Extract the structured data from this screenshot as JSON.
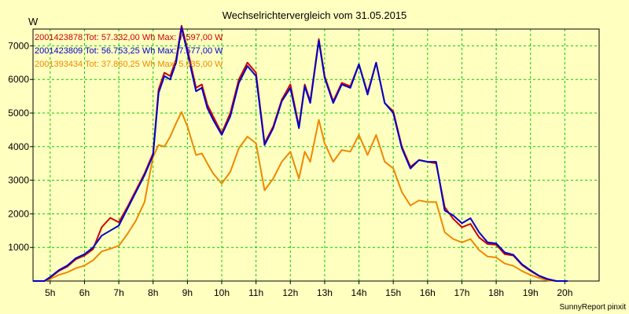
{
  "chart_data": {
    "type": "line",
    "title": "Wechselrichtervergleich vom 31.05.2015",
    "ylabel": "W",
    "xlabel": "",
    "xlim": [
      4.5,
      21.0
    ],
    "ylim": [
      0,
      7500
    ],
    "grid": true,
    "x_ticks": [
      5,
      6,
      7,
      8,
      9,
      10,
      11,
      12,
      13,
      14,
      15,
      16,
      17,
      18,
      19,
      20
    ],
    "x_tick_labels": [
      "5h",
      "6h",
      "7h",
      "8h",
      "9h",
      "10h",
      "11h",
      "12h",
      "13h",
      "14h",
      "15h",
      "16h",
      "17h",
      "18h",
      "19h",
      "20h"
    ],
    "y_ticks": [
      1000,
      2000,
      3000,
      4000,
      5000,
      6000,
      7000
    ],
    "y_tick_labels": [
      "1000",
      "2000",
      "3000",
      "4000",
      "5000",
      "6000",
      "7000"
    ],
    "legend_position": "top-left",
    "credit": "SunnyReport pinxit",
    "series": [
      {
        "name": "2001423878",
        "legend": "2001423878 Tot: 57.332,00 Wh Max: 7.597,00 W",
        "color": "#d00000",
        "points": [
          [
            4.5,
            0
          ],
          [
            4.83,
            0
          ],
          [
            5.0,
            100
          ],
          [
            5.25,
            300
          ],
          [
            5.5,
            430
          ],
          [
            5.75,
            650
          ],
          [
            6.0,
            760
          ],
          [
            6.25,
            950
          ],
          [
            6.5,
            1600
          ],
          [
            6.75,
            1880
          ],
          [
            7.0,
            1750
          ],
          [
            7.25,
            2200
          ],
          [
            7.5,
            2700
          ],
          [
            7.75,
            3200
          ],
          [
            8.0,
            3800
          ],
          [
            8.16,
            5700
          ],
          [
            8.33,
            6200
          ],
          [
            8.5,
            6100
          ],
          [
            8.67,
            6600
          ],
          [
            8.83,
            7600
          ],
          [
            9.0,
            6900
          ],
          [
            9.25,
            5750
          ],
          [
            9.42,
            5850
          ],
          [
            9.58,
            5250
          ],
          [
            9.75,
            4900
          ],
          [
            10.0,
            4400
          ],
          [
            10.25,
            5000
          ],
          [
            10.5,
            6000
          ],
          [
            10.75,
            6500
          ],
          [
            11.0,
            6200
          ],
          [
            11.25,
            4100
          ],
          [
            11.5,
            4600
          ],
          [
            11.75,
            5400
          ],
          [
            12.0,
            5850
          ],
          [
            12.25,
            4600
          ],
          [
            12.42,
            5850
          ],
          [
            12.58,
            5350
          ],
          [
            12.83,
            7200
          ],
          [
            13.0,
            6100
          ],
          [
            13.25,
            5350
          ],
          [
            13.5,
            5900
          ],
          [
            13.75,
            5800
          ],
          [
            14.0,
            6450
          ],
          [
            14.25,
            5600
          ],
          [
            14.5,
            6500
          ],
          [
            14.75,
            5300
          ],
          [
            15.0,
            5050
          ],
          [
            15.25,
            4000
          ],
          [
            15.5,
            3400
          ],
          [
            15.75,
            3600
          ],
          [
            16.0,
            3550
          ],
          [
            16.25,
            3500
          ],
          [
            16.5,
            2200
          ],
          [
            16.75,
            1850
          ],
          [
            17.0,
            1600
          ],
          [
            17.25,
            1700
          ],
          [
            17.5,
            1300
          ],
          [
            17.75,
            1100
          ],
          [
            18.0,
            1080
          ],
          [
            18.25,
            800
          ],
          [
            18.5,
            760
          ],
          [
            18.75,
            480
          ],
          [
            19.0,
            300
          ],
          [
            19.25,
            150
          ],
          [
            19.5,
            50
          ],
          [
            19.75,
            0
          ],
          [
            20.08,
            0
          ]
        ]
      },
      {
        "name": "2001423809",
        "legend": "2001423809 Tot: 56.753,25 Wh Max: 7.577,00 W",
        "color": "#0000cc",
        "points": [
          [
            4.5,
            0
          ],
          [
            4.83,
            0
          ],
          [
            5.0,
            120
          ],
          [
            5.25,
            320
          ],
          [
            5.5,
            460
          ],
          [
            5.75,
            680
          ],
          [
            6.0,
            800
          ],
          [
            6.25,
            1000
          ],
          [
            6.5,
            1350
          ],
          [
            6.75,
            1500
          ],
          [
            7.0,
            1650
          ],
          [
            7.25,
            2150
          ],
          [
            7.5,
            2650
          ],
          [
            7.75,
            3150
          ],
          [
            8.0,
            3750
          ],
          [
            8.16,
            5600
          ],
          [
            8.33,
            6100
          ],
          [
            8.5,
            6000
          ],
          [
            8.67,
            6500
          ],
          [
            8.83,
            7550
          ],
          [
            9.0,
            6800
          ],
          [
            9.25,
            5650
          ],
          [
            9.42,
            5750
          ],
          [
            9.58,
            5150
          ],
          [
            9.75,
            4800
          ],
          [
            10.0,
            4350
          ],
          [
            10.25,
            4900
          ],
          [
            10.5,
            5900
          ],
          [
            10.75,
            6400
          ],
          [
            11.0,
            6100
          ],
          [
            11.25,
            4050
          ],
          [
            11.5,
            4550
          ],
          [
            11.75,
            5350
          ],
          [
            12.0,
            5750
          ],
          [
            12.25,
            4550
          ],
          [
            12.42,
            5800
          ],
          [
            12.58,
            5300
          ],
          [
            12.83,
            7150
          ],
          [
            13.0,
            6050
          ],
          [
            13.25,
            5300
          ],
          [
            13.5,
            5850
          ],
          [
            13.75,
            5750
          ],
          [
            14.0,
            6450
          ],
          [
            14.25,
            5550
          ],
          [
            14.5,
            6500
          ],
          [
            14.75,
            5300
          ],
          [
            15.0,
            5000
          ],
          [
            15.25,
            3950
          ],
          [
            15.5,
            3350
          ],
          [
            15.75,
            3600
          ],
          [
            16.0,
            3550
          ],
          [
            16.25,
            3550
          ],
          [
            16.5,
            2100
          ],
          [
            16.75,
            1950
          ],
          [
            17.0,
            1720
          ],
          [
            17.25,
            1870
          ],
          [
            17.5,
            1450
          ],
          [
            17.75,
            1150
          ],
          [
            18.0,
            1120
          ],
          [
            18.25,
            850
          ],
          [
            18.5,
            780
          ],
          [
            18.75,
            500
          ],
          [
            19.0,
            320
          ],
          [
            19.25,
            160
          ],
          [
            19.5,
            60
          ],
          [
            19.75,
            0
          ],
          [
            20.08,
            0
          ]
        ]
      },
      {
        "name": "2001393434",
        "legend": "2001393434 Tot: 37.860,25 Wh Max: 5.035,00 W",
        "color": "#ee8800",
        "points": [
          [
            4.5,
            0
          ],
          [
            4.83,
            0
          ],
          [
            5.0,
            60
          ],
          [
            5.25,
            180
          ],
          [
            5.5,
            260
          ],
          [
            5.75,
            380
          ],
          [
            6.0,
            460
          ],
          [
            6.25,
            620
          ],
          [
            6.5,
            880
          ],
          [
            6.75,
            960
          ],
          [
            7.0,
            1050
          ],
          [
            7.25,
            1400
          ],
          [
            7.5,
            1800
          ],
          [
            7.75,
            2350
          ],
          [
            8.0,
            3700
          ],
          [
            8.16,
            4050
          ],
          [
            8.33,
            4000
          ],
          [
            8.5,
            4300
          ],
          [
            8.67,
            4700
          ],
          [
            8.83,
            5030
          ],
          [
            9.0,
            4600
          ],
          [
            9.25,
            3750
          ],
          [
            9.42,
            3800
          ],
          [
            9.58,
            3500
          ],
          [
            9.75,
            3200
          ],
          [
            10.0,
            2900
          ],
          [
            10.25,
            3250
          ],
          [
            10.5,
            3950
          ],
          [
            10.75,
            4300
          ],
          [
            11.0,
            4100
          ],
          [
            11.25,
            2700
          ],
          [
            11.5,
            3050
          ],
          [
            11.75,
            3550
          ],
          [
            12.0,
            3850
          ],
          [
            12.25,
            3050
          ],
          [
            12.42,
            3850
          ],
          [
            12.58,
            3550
          ],
          [
            12.83,
            4800
          ],
          [
            13.0,
            4100
          ],
          [
            13.25,
            3550
          ],
          [
            13.5,
            3900
          ],
          [
            13.75,
            3850
          ],
          [
            14.0,
            4350
          ],
          [
            14.25,
            3750
          ],
          [
            14.5,
            4350
          ],
          [
            14.75,
            3550
          ],
          [
            15.0,
            3350
          ],
          [
            15.25,
            2650
          ],
          [
            15.5,
            2250
          ],
          [
            15.75,
            2400
          ],
          [
            16.0,
            2350
          ],
          [
            16.25,
            2350
          ],
          [
            16.5,
            1450
          ],
          [
            16.75,
            1250
          ],
          [
            17.0,
            1150
          ],
          [
            17.25,
            1250
          ],
          [
            17.5,
            920
          ],
          [
            17.75,
            730
          ],
          [
            18.0,
            700
          ],
          [
            18.25,
            520
          ],
          [
            18.5,
            450
          ],
          [
            18.75,
            300
          ],
          [
            19.0,
            180
          ],
          [
            19.25,
            90
          ],
          [
            19.5,
            20
          ],
          [
            19.75,
            0
          ],
          [
            20.08,
            0
          ]
        ]
      }
    ]
  }
}
